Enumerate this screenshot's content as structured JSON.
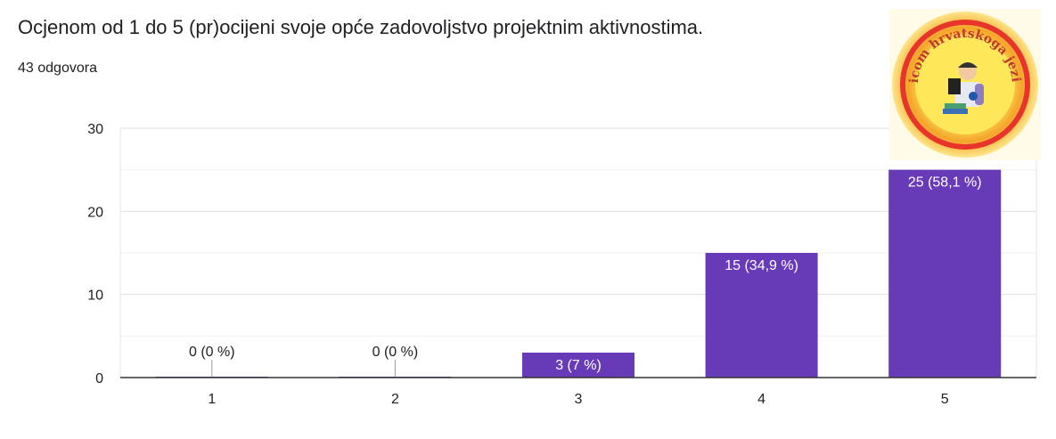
{
  "header": {
    "title": "Ocjenom od 1 do 5 (pr)ocijeni svoje opće zadovoljstvo projektnim aktivnostima.",
    "responses": "43 odgovora"
  },
  "logo": {
    "text": "Ulicom hrvatskoga jezika",
    "icon": "reading-student-logo-icon"
  },
  "colors": {
    "bar": "#673ab7",
    "grid": "#e6e6e6",
    "axis": "#333333",
    "text": "#202124"
  },
  "chart_data": {
    "type": "bar",
    "categories": [
      "1",
      "2",
      "3",
      "4",
      "5"
    ],
    "values": [
      0,
      0,
      3,
      15,
      25
    ],
    "data_labels": [
      "0 (0 %)",
      "0 (0 %)",
      "3 (7 %)",
      "15 (34,9 %)",
      "25 (58,1 %)"
    ],
    "ylim": [
      0,
      30
    ],
    "yticks": [
      0,
      10,
      20,
      30
    ],
    "grid": true,
    "legend": "none"
  }
}
